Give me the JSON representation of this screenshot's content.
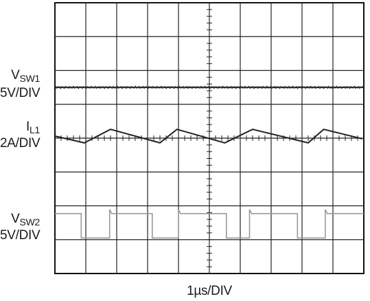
{
  "chart_data": {
    "type": "line",
    "title": "",
    "grid": true,
    "grid_divisions": {
      "x": 10,
      "y": 8
    },
    "xlabel": "1µs/DIV",
    "xlim": [
      0,
      10
    ],
    "x_unit": "µs",
    "series": [
      {
        "name": "V_SW1",
        "label_main": "V",
        "label_sub": "SW1",
        "scale": "5V/DIV",
        "color": "#222222",
        "kind": "flat",
        "level_div": 5.5,
        "points": [
          [
            0,
            5.5
          ],
          [
            10,
            5.5
          ]
        ]
      },
      {
        "name": "I_L1",
        "label_main": "I",
        "label_sub": "L1",
        "scale": "2A/DIV",
        "color": "#222222",
        "kind": "triangle",
        "points": [
          [
            0.0,
            4.06
          ],
          [
            0.95,
            3.86
          ],
          [
            1.8,
            4.26
          ],
          [
            3.4,
            3.86
          ],
          [
            3.95,
            4.26
          ],
          [
            5.5,
            3.86
          ],
          [
            6.4,
            4.26
          ],
          [
            8.2,
            3.86
          ],
          [
            8.7,
            4.26
          ],
          [
            9.95,
            3.98
          ]
        ]
      },
      {
        "name": "V_SW2",
        "label_main": "V",
        "label_sub": "SW2",
        "scale": "5V/DIV",
        "color": "#9a9a9a",
        "kind": "pulse",
        "high_div": 1.77,
        "low_div": 1.05,
        "transitions": [
          [
            0.85,
            1.77,
            1.05
          ],
          [
            1.77,
            1.05,
            1.77
          ],
          [
            3.15,
            1.77,
            1.05
          ],
          [
            4.0,
            1.05,
            1.77
          ],
          [
            5.55,
            1.77,
            1.05
          ],
          [
            6.3,
            1.05,
            1.77
          ],
          [
            7.85,
            1.77,
            1.05
          ],
          [
            8.75,
            1.05,
            1.77
          ]
        ]
      }
    ]
  }
}
